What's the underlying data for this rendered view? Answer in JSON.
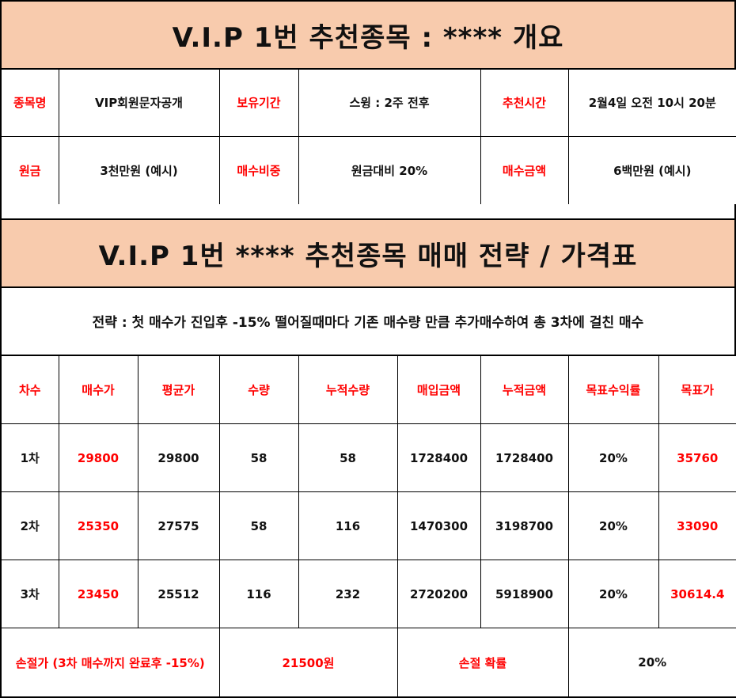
{
  "overview": {
    "title": "V.I.P 1번 추천종목 : **** 개요",
    "rows": [
      [
        {
          "label": "종목명",
          "value": "VIP회원문자공개"
        },
        {
          "label": "보유기간",
          "value": "스윙 : 2주 전후"
        },
        {
          "label": "추천시간",
          "value": "2월4일 오전 10시 20분"
        }
      ],
      [
        {
          "label": "원금",
          "value": "3천만원 (예시)"
        },
        {
          "label": "매수비중",
          "value": "원금대비 20%"
        },
        {
          "label": "매수금액",
          "value": "6백만원 (예시)"
        }
      ]
    ]
  },
  "strategy": {
    "title": "V.I.P 1번 **** 추천종목  매매 전략 / 가격표",
    "description": "전략 : 첫 매수가 진입후 -15% 떨어질때마다 기존 매수량 만큼 추가매수하여 총 3차에 걸친 매수"
  },
  "price_table": {
    "headers": [
      "차수",
      "매수가",
      "평균가",
      "수량",
      "누적수량",
      "매입금액",
      "누적금액",
      "목표수익률",
      "목표가"
    ],
    "rows": [
      [
        "1차",
        "29800",
        "29800",
        "58",
        "58",
        "1728400",
        "1728400",
        "20%",
        "35760"
      ],
      [
        "2차",
        "25350",
        "27575",
        "58",
        "116",
        "1470300",
        "3198700",
        "20%",
        "33090"
      ],
      [
        "3차",
        "23450",
        "25512",
        "116",
        "232",
        "2720200",
        "5918900",
        "20%",
        "30614.4"
      ]
    ],
    "stop_loss": {
      "label": "손절가 (3차 매수까지 완료후 -15%)",
      "price": "21500원",
      "prob_label": "손절 확률",
      "prob_value": "20%"
    }
  },
  "colors": {
    "banner_bg": "#f8cbad",
    "label_text": "#ff0000"
  }
}
